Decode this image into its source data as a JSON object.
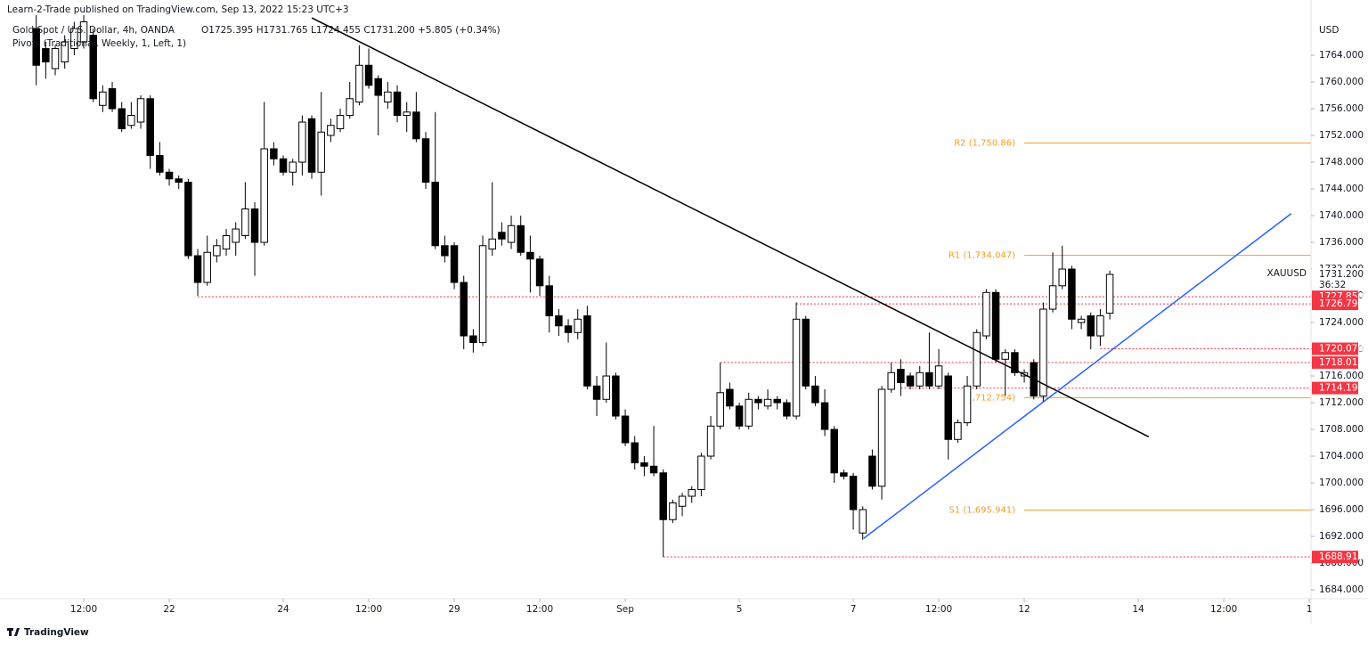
{
  "header": {
    "publisher": "Learn-2-Trade published on TradingView.com, Sep 13, 2022 15:23 UTC+3",
    "symbol": "Gold Spot / U.S. Dollar, 4h, OANDA",
    "ohlc": "O1725.395 H1731.765 L1724.455 C1731.200 +5.805 (+0.34%)",
    "indicator": "Pivots (Traditional, Weekly, 1, Left, 1)",
    "currency": "USD"
  },
  "footer": {
    "logo": "TradingView"
  },
  "chart_data": {
    "type": "candlestick",
    "up_color": "#ffffff",
    "down_color": "#000000",
    "xlim": [
      -3.815,
      134.18
    ],
    "ylim": [
      1682.67,
      1772.27
    ],
    "xticks": [
      {
        "value": 5,
        "label": "12:00"
      },
      {
        "value": 14,
        "label": "22"
      },
      {
        "value": 26,
        "label": "24"
      },
      {
        "value": 35,
        "label": "12:00"
      },
      {
        "value": 44,
        "label": "29"
      },
      {
        "value": 53,
        "label": "12:00"
      },
      {
        "value": 62,
        "label": "Sep"
      },
      {
        "value": 74,
        "label": "5"
      },
      {
        "value": 86,
        "label": "7"
      },
      {
        "value": 95,
        "label": "12:00"
      },
      {
        "value": 104,
        "label": "12"
      },
      {
        "value": 116,
        "label": "14"
      },
      {
        "value": 125,
        "label": "12:00"
      },
      {
        "value": 134,
        "label": "1"
      }
    ],
    "yticks": [
      {
        "value": 1684,
        "label": "1684.000"
      },
      {
        "value": 1688,
        "label": "1688.000"
      },
      {
        "value": 1692,
        "label": "1692.000"
      },
      {
        "value": 1696,
        "label": "1696.000"
      },
      {
        "value": 1700,
        "label": "1700.000"
      },
      {
        "value": 1704,
        "label": "1704.000"
      },
      {
        "value": 1708,
        "label": "1708.000"
      },
      {
        "value": 1712,
        "label": "1712.000"
      },
      {
        "value": 1716,
        "label": "1716.000"
      },
      {
        "value": 1720,
        "label": "1720.000"
      },
      {
        "value": 1724,
        "label": "1724.000"
      },
      {
        "value": 1728,
        "label": "1728.000"
      },
      {
        "value": 1732,
        "label": "1732.000"
      },
      {
        "value": 1736,
        "label": "1736.000"
      },
      {
        "value": 1740,
        "label": "1740.000"
      },
      {
        "value": 1744,
        "label": "1744.000"
      },
      {
        "value": 1748,
        "label": "1748.000"
      },
      {
        "value": 1752,
        "label": "1752.000"
      },
      {
        "value": 1756,
        "label": "1756.000"
      },
      {
        "value": 1760,
        "label": "1760.000"
      },
      {
        "value": 1764,
        "label": "1764.000"
      }
    ],
    "ohlc": [
      [
        1768,
        1770,
        1759.5,
        1762.5
      ],
      [
        1765,
        1766,
        1760.5,
        1763
      ],
      [
        1762,
        1765.5,
        1761,
        1765
      ],
      [
        1763,
        1767,
        1762,
        1766
      ],
      [
        1765,
        1769,
        1764,
        1768
      ],
      [
        1766,
        1770,
        1765,
        1769
      ],
      [
        1767,
        1768,
        1757,
        1757.5
      ],
      [
        1756.5,
        1759.5,
        1755.5,
        1758.5
      ],
      [
        1759,
        1760,
        1755.5,
        1756
      ],
      [
        1756,
        1757,
        1752.5,
        1753
      ],
      [
        1753.5,
        1757,
        1753,
        1755
      ],
      [
        1754,
        1758,
        1753,
        1757.5
      ],
      [
        1757.5,
        1758,
        1747,
        1749
      ],
      [
        1749,
        1751,
        1746,
        1746.5
      ],
      [
        1746.5,
        1747,
        1744.5,
        1745.5
      ],
      [
        1745.5,
        1746,
        1744,
        1745
      ],
      [
        1745,
        1745.5,
        1733.5,
        1734
      ],
      [
        1734,
        1735,
        1728,
        1730
      ],
      [
        1730,
        1737,
        1729.5,
        1734.5
      ],
      [
        1734,
        1736.5,
        1733,
        1735.5
      ],
      [
        1735,
        1738,
        1734,
        1737
      ],
      [
        1736,
        1739,
        1734,
        1738
      ],
      [
        1737,
        1745,
        1736.5,
        1741
      ],
      [
        1741,
        1742,
        1731,
        1736
      ],
      [
        1736,
        1757,
        1735.5,
        1750
      ],
      [
        1750,
        1751,
        1747.5,
        1748.5
      ],
      [
        1748.5,
        1749,
        1746,
        1746.5
      ],
      [
        1746.5,
        1748.5,
        1744.5,
        1748
      ],
      [
        1748,
        1755,
        1746,
        1754
      ],
      [
        1754.5,
        1755,
        1745.5,
        1746.5
      ],
      [
        1746.5,
        1758.5,
        1743,
        1752.5
      ],
      [
        1752,
        1754.5,
        1751,
        1753.5
      ],
      [
        1753,
        1756,
        1752.5,
        1755
      ],
      [
        1755,
        1760,
        1754.5,
        1757.5
      ],
      [
        1757,
        1765.5,
        1756.5,
        1762.5
      ],
      [
        1762.5,
        1765,
        1759,
        1759.5
      ],
      [
        1760.5,
        1761,
        1752,
        1758
      ],
      [
        1757,
        1760,
        1756,
        1758.5
      ],
      [
        1758.5,
        1759.5,
        1754,
        1755
      ],
      [
        1755,
        1757,
        1752.5,
        1755.5
      ],
      [
        1755.5,
        1758.5,
        1751,
        1751.5
      ],
      [
        1751.5,
        1752.5,
        1744,
        1745
      ],
      [
        1745,
        1755.5,
        1735,
        1735.5
      ],
      [
        1735.5,
        1737,
        1733,
        1734
      ],
      [
        1735.5,
        1736,
        1729,
        1730
      ],
      [
        1730,
        1731,
        1720,
        1722
      ],
      [
        1722,
        1723,
        1719.5,
        1721
      ],
      [
        1721,
        1737,
        1720.5,
        1735.5
      ],
      [
        1735,
        1745,
        1734,
        1736.5
      ],
      [
        1737.5,
        1739,
        1735.5,
        1736.5
      ],
      [
        1736,
        1740,
        1735,
        1738.5
      ],
      [
        1738.5,
        1740,
        1734,
        1734.5
      ],
      [
        1734.5,
        1737,
        1728.5,
        1733.5
      ],
      [
        1733.5,
        1734,
        1728,
        1729.5
      ],
      [
        1729.5,
        1731,
        1722.5,
        1725
      ],
      [
        1725,
        1726,
        1722,
        1723.5
      ],
      [
        1723.5,
        1724.5,
        1721,
        1722.5
      ],
      [
        1722.5,
        1726,
        1721.5,
        1724.5
      ],
      [
        1725,
        1726.5,
        1714,
        1714.5
      ],
      [
        1714.5,
        1716,
        1710,
        1712.5
      ],
      [
        1712.5,
        1721,
        1712,
        1716
      ],
      [
        1716,
        1716.5,
        1709.5,
        1710
      ],
      [
        1710,
        1711,
        1705.5,
        1706
      ],
      [
        1706,
        1707,
        1702,
        1703
      ],
      [
        1703,
        1704,
        1701,
        1702.5
      ],
      [
        1702.5,
        1708.5,
        1701,
        1701.5
      ],
      [
        1701.5,
        1702,
        1688.9,
        1694.5
      ],
      [
        1694.5,
        1697.5,
        1694,
        1697
      ],
      [
        1696.5,
        1698.5,
        1695,
        1698
      ],
      [
        1698,
        1699.5,
        1697,
        1699
      ],
      [
        1699,
        1704.5,
        1698,
        1704
      ],
      [
        1704,
        1710,
        1703.5,
        1708.5
      ],
      [
        1708.5,
        1718,
        1708,
        1713.5
      ],
      [
        1714,
        1715,
        1711,
        1711.5
      ],
      [
        1711.5,
        1712,
        1708,
        1708.5
      ],
      [
        1708.5,
        1713.5,
        1708,
        1712.5
      ],
      [
        1712.5,
        1713,
        1711,
        1712
      ],
      [
        1711.5,
        1714,
        1711,
        1712.5
      ],
      [
        1712.5,
        1713,
        1711,
        1712
      ],
      [
        1712,
        1712.5,
        1709.5,
        1710
      ],
      [
        1710,
        1727,
        1709.5,
        1724.5
      ],
      [
        1724.5,
        1725,
        1714,
        1714.5
      ],
      [
        1714.5,
        1716,
        1711.5,
        1712
      ],
      [
        1712,
        1714,
        1707,
        1708
      ],
      [
        1708,
        1708.5,
        1700,
        1701.5
      ],
      [
        1701.5,
        1702,
        1700.5,
        1701
      ],
      [
        1701,
        1701.5,
        1693,
        1696
      ],
      [
        1692.5,
        1696.5,
        1691.5,
        1696
      ],
      [
        1704,
        1705,
        1699,
        1699.5
      ],
      [
        1699.5,
        1714.5,
        1697.5,
        1714
      ],
      [
        1714,
        1718,
        1713.5,
        1716.5
      ],
      [
        1717,
        1718.5,
        1713,
        1715
      ],
      [
        1716,
        1716.5,
        1714,
        1714.5
      ],
      [
        1714.5,
        1717.5,
        1714,
        1716.5
      ],
      [
        1716.5,
        1722.5,
        1714,
        1714.5
      ],
      [
        1714.5,
        1720,
        1714,
        1717.5
      ],
      [
        1716,
        1716.5,
        1703.5,
        1706.5
      ],
      [
        1706.5,
        1709.5,
        1706,
        1709
      ],
      [
        1709,
        1716,
        1708.5,
        1714.5
      ],
      [
        1714.5,
        1723,
        1714,
        1722.5
      ],
      [
        1722,
        1729,
        1721.5,
        1728.5
      ],
      [
        1728.5,
        1729,
        1718,
        1718.5
      ],
      [
        1718.5,
        1720,
        1713,
        1719.5
      ],
      [
        1719.5,
        1720,
        1716,
        1716.5
      ],
      [
        1716,
        1717,
        1715,
        1716.5
      ],
      [
        1718,
        1718.5,
        1712.5,
        1713
      ],
      [
        1713,
        1727,
        1712,
        1726
      ],
      [
        1726,
        1734.5,
        1725.5,
        1729.5
      ],
      [
        1729.5,
        1735.5,
        1729,
        1732
      ],
      [
        1732,
        1732.5,
        1723,
        1724.5
      ],
      [
        1724,
        1725,
        1723,
        1724.5
      ],
      [
        1725,
        1725.5,
        1720,
        1722
      ],
      [
        1722,
        1726,
        1720.5,
        1725
      ],
      [
        1725.395,
        1731.765,
        1724.455,
        1731.2
      ]
    ],
    "trendlines": [
      {
        "color": "#000000",
        "points": [
          [
            29,
            1769.6
          ],
          [
            117.1,
            1706.9
          ]
        ]
      },
      {
        "color": "#2962ff",
        "points": [
          [
            87.1,
            1691.7
          ],
          [
            132.1,
            1740.3
          ]
        ]
      }
    ],
    "pivot_color": "#f59d20",
    "pivot_start": 104,
    "pivots": [
      {
        "value": 1750.86,
        "label": "R2 (1,750.86)"
      },
      {
        "value": 1734.047,
        "label": "R1 (1,734.047)"
      },
      {
        "value": 1712.754,
        "label": "(1,712.754)"
      },
      {
        "value": 1695.941,
        "label": "S1 (1,695.941)"
      }
    ],
    "level_color": "#f23645",
    "levels": [
      {
        "value": 1727.85,
        "label": "1727.850",
        "start": 17
      },
      {
        "value": 1726.795,
        "label": "1726.795",
        "start": 80
      },
      {
        "value": 1720.07,
        "label": "1720.070",
        "start": 112
      },
      {
        "value": 1718.015,
        "label": "1718.015",
        "start": 72
      },
      {
        "value": 1714.195,
        "label": "1714.195",
        "start": 91
      },
      {
        "value": 1688.915,
        "label": "1688.915",
        "start": 66
      }
    ],
    "last": {
      "symbol": "XAUUSD",
      "value": 1731.2,
      "label": "1731.200",
      "countdown": "36:32"
    }
  }
}
